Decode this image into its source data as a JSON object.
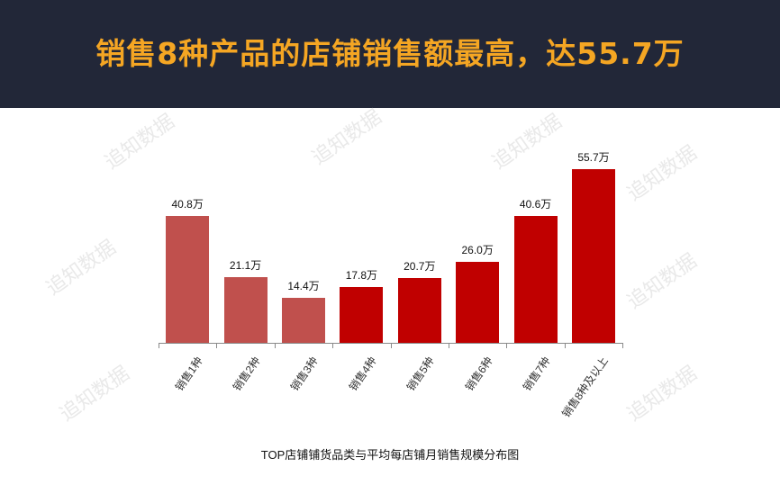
{
  "banner": {
    "headline": "销售8种产品的店铺销售额最高，达55.7万",
    "background": "#222738",
    "text_color": "#f5a623"
  },
  "watermark": "追知数据",
  "chart_data": {
    "type": "bar",
    "title": "TOP店铺铺货品类与平均每店铺月销售规模分布图",
    "xlabel": "",
    "ylabel": "",
    "unit": "万",
    "categories": [
      "销售1种",
      "销售2种",
      "销售3种",
      "销售4种",
      "销售5种",
      "销售6种",
      "销售7种",
      "销售8种及以上"
    ],
    "values": [
      40.8,
      21.1,
      14.4,
      17.8,
      20.7,
      26.0,
      40.6,
      55.7
    ],
    "labels": [
      "40.8万",
      "21.1万",
      "14.4万",
      "17.8万",
      "20.7万",
      "26.0万",
      "40.6万",
      "55.7万"
    ],
    "colors": [
      "#c0504d",
      "#c0504d",
      "#c0504d",
      "#c00000",
      "#c00000",
      "#c00000",
      "#c00000",
      "#c00000"
    ],
    "ylim": [
      0,
      60
    ],
    "grid": false,
    "legend": null
  }
}
